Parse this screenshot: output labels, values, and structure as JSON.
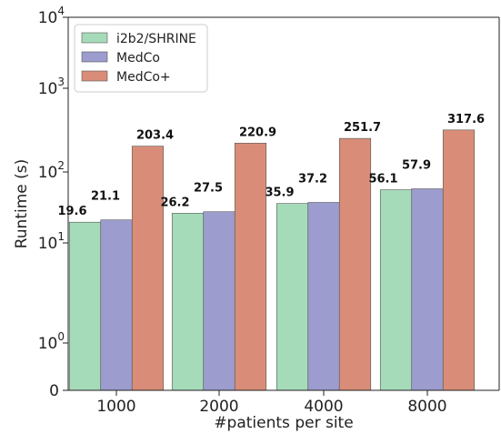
{
  "chart_data": {
    "type": "bar",
    "title": "",
    "xlabel": "#patients per site",
    "ylabel": "Runtime (s)",
    "categories": [
      "1000",
      "2000",
      "4000",
      "8000"
    ],
    "series": [
      {
        "name": "i2b2/SHRINE",
        "color": "#a6dbb9",
        "values": [
          19.6,
          26.2,
          35.9,
          56.1
        ],
        "labels": [
          "19.6",
          "26.2",
          "35.9",
          "56.1"
        ]
      },
      {
        "name": "MedCo",
        "color": "#9c9ccf",
        "values": [
          21.1,
          27.5,
          37.2,
          57.9
        ],
        "labels": [
          "21.1",
          "27.5",
          "37.2",
          "57.9"
        ]
      },
      {
        "name": "MedCo+",
        "color": "#d98d78",
        "values": [
          203.4,
          220.9,
          251.7,
          317.6
        ],
        "labels": [
          "203.4",
          "220.9",
          "251.7",
          "317.6"
        ]
      }
    ],
    "yscale": "symlog",
    "ylim": [
      0,
      10000
    ],
    "yticks": [
      {
        "value": 0,
        "base": "0",
        "exp": ""
      },
      {
        "value": 1,
        "base": "10",
        "exp": "0"
      },
      {
        "value": 10,
        "base": "10",
        "exp": "1"
      },
      {
        "value": 100,
        "base": "10",
        "exp": "2"
      },
      {
        "value": 1000,
        "base": "10",
        "exp": "3"
      },
      {
        "value": 10000,
        "base": "10",
        "exp": "4"
      }
    ],
    "grid": false,
    "legend_position": "top-left"
  }
}
